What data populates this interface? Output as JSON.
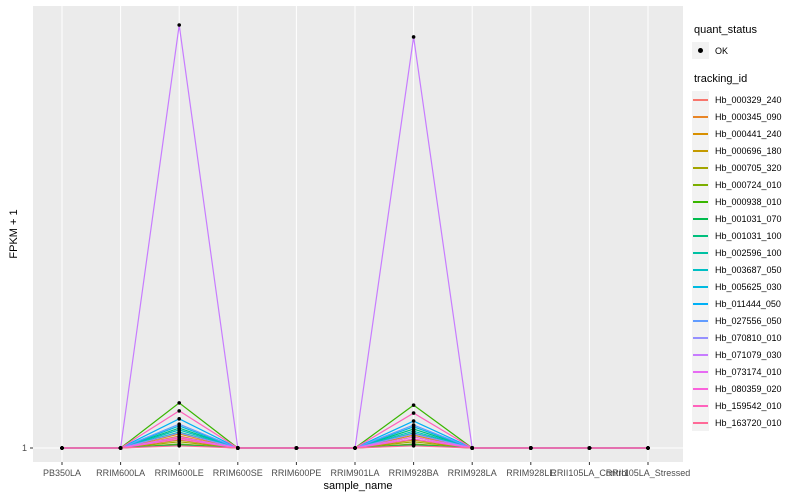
{
  "figure": {
    "background": "#FFFFFF",
    "panel_background": "#EBEBEB",
    "gridline_color": "#FFFFFF",
    "legend_key_background": "#F2F2F2",
    "axis_text_color": "#4D4D4D",
    "point_color": "#000000"
  },
  "chart_data": {
    "type": "line",
    "title": "",
    "xlabel": "sample_name",
    "ylabel": "FPKM + 1",
    "x_categories": [
      "PB350LA",
      "RRIM600LA",
      "RRIM600LE",
      "RRIM600SE",
      "RRIM600PE",
      "RRIM901LA",
      "RRIM928BA",
      "RRIM928LA",
      "RRIM928LE",
      "RRII105LA_Control",
      "RRII105LA_Stressed"
    ],
    "y_tick_labels": [
      "1"
    ],
    "baseline_value": 1,
    "heights_encoding": "fraction_of_panel_height_above_baseline",
    "legend": {
      "position": "right",
      "quant_status_title": "quant_status",
      "quant_status_items": [
        {
          "label": "OK",
          "shape": "point"
        }
      ],
      "tracking_id_title": "tracking_id"
    },
    "series": [
      {
        "name": "Hb_000329_240",
        "color": "#F8766D",
        "heights": [
          0,
          0,
          0.023,
          0,
          0,
          0,
          0.02,
          0,
          0,
          0,
          0
        ]
      },
      {
        "name": "Hb_000345_090",
        "color": "#E88526",
        "heights": [
          0,
          0,
          0.027,
          0,
          0,
          0,
          0.025,
          0,
          0,
          0,
          0
        ]
      },
      {
        "name": "Hb_000441_240",
        "color": "#D89000",
        "heights": [
          0,
          0,
          0.032,
          0,
          0,
          0,
          0.029,
          0,
          0,
          0,
          0
        ]
      },
      {
        "name": "Hb_000696_180",
        "color": "#C49A00",
        "heights": [
          0,
          0,
          0.018,
          0,
          0,
          0,
          0.018,
          0,
          0,
          0,
          0
        ]
      },
      {
        "name": "Hb_000705_320",
        "color": "#A3A500",
        "heights": [
          0,
          0,
          0.014,
          0,
          0,
          0,
          0.014,
          0,
          0,
          0,
          0
        ]
      },
      {
        "name": "Hb_000724_010",
        "color": "#7CAE00",
        "heights": [
          0,
          0,
          0.009,
          0,
          0,
          0,
          0.009,
          0,
          0,
          0,
          0
        ]
      },
      {
        "name": "Hb_000938_010",
        "color": "#39B600",
        "heights": [
          0,
          0,
          0.102,
          0,
          0,
          0,
          0.097,
          0,
          0,
          0,
          0
        ]
      },
      {
        "name": "Hb_001031_070",
        "color": "#00BB4E",
        "heights": [
          0,
          0,
          0.007,
          0,
          0,
          0,
          0.007,
          0,
          0,
          0,
          0
        ]
      },
      {
        "name": "Hb_001031_100",
        "color": "#00BF7D",
        "heights": [
          0,
          0,
          0.045,
          0,
          0,
          0,
          0.043,
          0,
          0,
          0,
          0
        ]
      },
      {
        "name": "Hb_002596_100",
        "color": "#00C1A3",
        "heights": [
          0,
          0,
          0.036,
          0,
          0,
          0,
          0.034,
          0,
          0,
          0,
          0
        ]
      },
      {
        "name": "Hb_003687_050",
        "color": "#00BFC4",
        "heights": [
          0,
          0,
          0.041,
          0,
          0,
          0,
          0.038,
          0,
          0,
          0,
          0
        ]
      },
      {
        "name": "Hb_005625_030",
        "color": "#00BAE0",
        "heights": [
          0,
          0,
          0.05,
          0,
          0,
          0,
          0.048,
          0,
          0,
          0,
          0
        ]
      },
      {
        "name": "Hb_011444_050",
        "color": "#00B0F6",
        "heights": [
          0,
          0,
          0.066,
          0,
          0,
          0,
          0.061,
          0,
          0,
          0,
          0
        ]
      },
      {
        "name": "Hb_027556_050",
        "color": "#619CFF",
        "heights": [
          0,
          0,
          0.054,
          0,
          0,
          0,
          0.052,
          0,
          0,
          0,
          0
        ]
      },
      {
        "name": "Hb_070810_010",
        "color": "#9590FF",
        "heights": [
          0,
          0,
          0.034,
          0,
          0,
          0,
          0.032,
          0,
          0,
          0,
          0
        ]
      },
      {
        "name": "Hb_071079_030",
        "color": "#C77CFF",
        "heights": [
          0,
          0,
          0.957,
          0,
          0,
          0,
          0.93,
          0,
          0,
          0,
          0
        ]
      },
      {
        "name": "Hb_073174_010",
        "color": "#E76BF3",
        "heights": [
          0,
          0,
          0.025,
          0,
          0,
          0,
          0.025,
          0,
          0,
          0,
          0
        ]
      },
      {
        "name": "Hb_080359_020",
        "color": "#FA62DB",
        "heights": [
          0,
          0,
          0.02,
          0,
          0,
          0,
          0.02,
          0,
          0,
          0,
          0
        ]
      },
      {
        "name": "Hb_159542_010",
        "color": "#FF62BC",
        "heights": [
          0,
          0,
          0.084,
          0,
          0,
          0,
          0.079,
          0,
          0,
          0,
          0
        ]
      },
      {
        "name": "Hb_163720_010",
        "color": "#FF6A98",
        "heights": [
          0,
          0,
          0.005,
          0,
          0,
          0,
          0.005,
          0,
          0,
          0,
          0
        ]
      }
    ]
  }
}
